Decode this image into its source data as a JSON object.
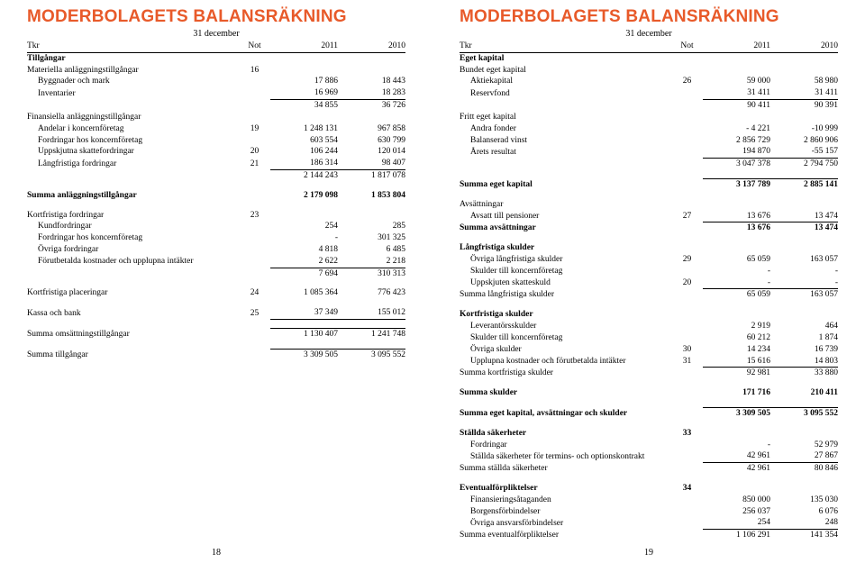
{
  "colors": {
    "accent": "#e85a2a",
    "text": "#000000",
    "bg": "#ffffff"
  },
  "typography": {
    "body_family": "Georgia, serif",
    "heading_family": "Arial, sans-serif",
    "body_size_pt": 9.5,
    "heading_size_pt": 19
  },
  "left": {
    "title": "MODERBOLAGETS BALANSRÄKNING",
    "date": "31 december",
    "header": {
      "c0": "Tkr",
      "c1": "Not",
      "c2": "2011",
      "c3": "2010"
    },
    "pagenum": "18",
    "rows": [
      {
        "type": "bold",
        "label": "Tillgångar"
      },
      {
        "label": "Materiella anläggningstillgångar",
        "note": "16"
      },
      {
        "indent": true,
        "label": "Byggnader och mark",
        "v1": "17 886",
        "v2": "18 443"
      },
      {
        "indent": true,
        "label": "Inventarier",
        "v1": "16 969",
        "v2": "18 283",
        "sumafter": true
      },
      {
        "sumline": true,
        "v1": "34 855",
        "v2": "36 726"
      },
      {
        "label": "Finansiella anläggningstillgångar"
      },
      {
        "indent": true,
        "label": "Andelar i koncernföretag",
        "note": "19",
        "v1": "1 248 131",
        "v2": "967 858"
      },
      {
        "indent": true,
        "label": "Fordringar hos koncernföretag",
        "v1": "603 554",
        "v2": "630 799"
      },
      {
        "indent": true,
        "label": "Uppskjutna skattefordringar",
        "note": "20",
        "v1": "106 244",
        "v2": "120 014"
      },
      {
        "indent": true,
        "label": "Långfristiga fordringar",
        "note": "21",
        "v1": "186 314",
        "v2": "98 407",
        "sumafter": true
      },
      {
        "sumline": true,
        "v1": "2 144 243",
        "v2": "1 817 078"
      },
      {
        "spacer": true
      },
      {
        "bold": true,
        "label": "Summa anläggningstillgångar",
        "v1": "2 179 098",
        "v2": "1 853 804"
      },
      {
        "spacer": true
      },
      {
        "label": "Kortfristiga fordringar",
        "note": "23"
      },
      {
        "indent": true,
        "label": "Kundfordringar",
        "v1": "254",
        "v2": "285"
      },
      {
        "indent": true,
        "label": "Fordringar hos koncernföretag",
        "v1": "-",
        "v2": "301 325"
      },
      {
        "indent": true,
        "label": "Övriga fordringar",
        "v1": "4 818",
        "v2": "6 485"
      },
      {
        "indent": true,
        "label": "Förutbetalda kostnader och upplupna intäkter",
        "v1": "2 622",
        "v2": "2 218",
        "sumafter": true
      },
      {
        "sumline": true,
        "v1": "7 694",
        "v2": "310 313"
      },
      {
        "spacer": true
      },
      {
        "label": "Kortfristiga placeringar",
        "note": "24",
        "v1": "1 085 364",
        "v2": "776 423"
      },
      {
        "spacer": true
      },
      {
        "label": "Kassa och bank",
        "note": "25",
        "v1": "37 349",
        "v2": "155 012",
        "sumafter": true
      },
      {
        "spacer": true
      },
      {
        "label": "Summa omsättningstillgångar",
        "sumline": true,
        "v1": "1 130 407",
        "v2": "1 241 748"
      },
      {
        "spacer": true
      },
      {
        "label": "Summa tillgångar",
        "sumline": true,
        "v1": "3 309 505",
        "v2": "3 095 552"
      }
    ]
  },
  "right": {
    "title": "MODERBOLAGETS BALANSRÄKNING",
    "date": "31 december",
    "header": {
      "c0": "Tkr",
      "c1": "Not",
      "c2": "2011",
      "c3": "2010"
    },
    "pagenum": "19",
    "rows": [
      {
        "type": "bold",
        "label": "Eget kapital"
      },
      {
        "label": "Bundet eget kapital"
      },
      {
        "indent": true,
        "label": "Aktiekapital",
        "note": "26",
        "v1": "59 000",
        "v2": "58 980"
      },
      {
        "indent": true,
        "label": "Reservfond",
        "v1": "31 411",
        "v2": "31 411",
        "sumafter": true
      },
      {
        "sumline": true,
        "v1": "90 411",
        "v2": "90 391"
      },
      {
        "label": "Fritt eget kapital"
      },
      {
        "indent": true,
        "label": "Andra fonder",
        "v1": "- 4 221",
        "v2": "-10 999"
      },
      {
        "indent": true,
        "label": "Balanserad vinst",
        "v1": "2 856 729",
        "v2": "2 860 906"
      },
      {
        "indent": true,
        "label": "Årets resultat",
        "v1": "194 870",
        "v2": "-55 157",
        "sumafter": true
      },
      {
        "sumline": true,
        "v1": "3 047 378",
        "v2": "2 794 750"
      },
      {
        "spacer": true
      },
      {
        "bold": true,
        "label": "Summa eget kapital",
        "sumline": true,
        "v1": "3 137 789",
        "v2": "2 885 141"
      },
      {
        "spacer": true
      },
      {
        "label": "Avsättningar"
      },
      {
        "indent": true,
        "label": "Avsatt till pensioner",
        "note": "27",
        "v1": "13 676",
        "v2": "13 474",
        "sumafter": true
      },
      {
        "bold": true,
        "sumline": true,
        "label": "Summa avsättningar",
        "v1": "13 676",
        "v2": "13 474"
      },
      {
        "spacer": true
      },
      {
        "bold": true,
        "label": "Långfristiga skulder"
      },
      {
        "indent": true,
        "label": "Övriga långfristiga skulder",
        "note": "29",
        "v1": "65 059",
        "v2": "163 057"
      },
      {
        "indent": true,
        "label": "Skulder till koncernföretag",
        "v1": "-",
        "v2": "-"
      },
      {
        "indent": true,
        "label": "Uppskjuten skatteskuld",
        "note": "20",
        "v1": "-",
        "v2": "-",
        "sumafter": true
      },
      {
        "sumline": true,
        "label": "Summa långfristiga skulder",
        "v1": "65 059",
        "v2": "163 057"
      },
      {
        "spacer": true
      },
      {
        "bold": true,
        "label": "Kortfristiga skulder"
      },
      {
        "indent": true,
        "label": "Leverantörsskulder",
        "v1": "2 919",
        "v2": "464"
      },
      {
        "indent": true,
        "label": "Skulder till koncernföretag",
        "v1": "60 212",
        "v2": "1 874"
      },
      {
        "indent": true,
        "label": "Övriga skulder",
        "note": "30",
        "v1": "14 234",
        "v2": "16 739"
      },
      {
        "indent": true,
        "label": "Upplupna kostnader och förutbetalda intäkter",
        "note": "31",
        "v1": "15 616",
        "v2": "14 803",
        "sumafter": true
      },
      {
        "sumline": true,
        "label": "Summa kortfristiga skulder",
        "v1": "92 981",
        "v2": "33 880"
      },
      {
        "spacer": true
      },
      {
        "bold": true,
        "label": "Summa skulder",
        "v1": "171 716",
        "v2": "210 411"
      },
      {
        "spacer": true
      },
      {
        "bold": true,
        "label": "Summa eget kapital, avsättningar och skulder",
        "sumline": true,
        "v1": "3 309 505",
        "v2": "3 095 552"
      },
      {
        "spacer": true
      },
      {
        "bold": true,
        "label": "Ställda säkerheter",
        "note": "33"
      },
      {
        "indent": true,
        "label": "Fordringar",
        "v1": "-",
        "v2": "52 979"
      },
      {
        "indent": true,
        "label": "Ställda säkerheter för termins- och optionskontrakt",
        "v1": "42 961",
        "v2": "27 867",
        "sumafter": true
      },
      {
        "sumline": true,
        "label": "Summa ställda säkerheter",
        "v1": "42 961",
        "v2": "80 846"
      },
      {
        "spacer": true
      },
      {
        "bold": true,
        "label": "Eventualförpliktelser",
        "note": "34"
      },
      {
        "indent": true,
        "label": "Finansieringsåtaganden",
        "v1": "850 000",
        "v2": "135 030"
      },
      {
        "indent": true,
        "label": "Borgensförbindelser",
        "v1": "256 037",
        "v2": "6 076"
      },
      {
        "indent": true,
        "label": "Övriga ansvarsförbindelser",
        "v1": "254",
        "v2": "248",
        "sumafter": true
      },
      {
        "sumline": true,
        "label": "Summa eventualförpliktelser",
        "v1": "1 106 291",
        "v2": "141 354"
      }
    ]
  }
}
